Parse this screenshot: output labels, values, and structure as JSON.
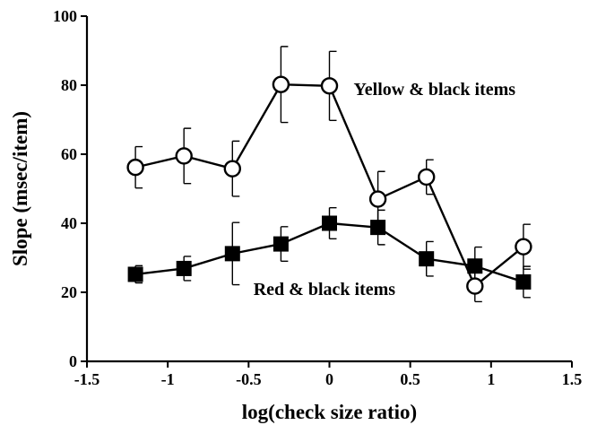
{
  "chart_data": {
    "type": "line",
    "title": "",
    "xlabel": "log(check size ratio)",
    "ylabel": "Slope (msec/item)",
    "xlim": [
      -1.5,
      1.5
    ],
    "ylim": [
      0,
      100
    ],
    "x_ticks": [
      -1.5,
      -1,
      -0.5,
      0,
      0.5,
      1,
      1.5
    ],
    "x_tick_labels": [
      "-1.5",
      "-1",
      "-0.5",
      "0",
      "0.5",
      "1",
      "1.5"
    ],
    "y_ticks": [
      0,
      20,
      40,
      60,
      80,
      100
    ],
    "y_tick_labels": [
      "0",
      "20",
      "40",
      "60",
      "80",
      "100"
    ],
    "grid": false,
    "legend": "none (series labelled by in-plot text)",
    "series": [
      {
        "name": "Yellow & black items",
        "marker": "open-circle",
        "color": "#000000",
        "x": [
          -1.2,
          -0.9,
          -0.6,
          -0.3,
          0,
          0.3,
          0.6,
          0.9,
          1.2
        ],
        "y": [
          56.2,
          59.5,
          55.8,
          80.2,
          79.8,
          47,
          53.4,
          21.8,
          33.2
        ],
        "error": [
          6,
          8,
          8,
          11,
          10,
          8,
          5,
          4.5,
          6.5
        ]
      },
      {
        "name": "Red & black items",
        "marker": "filled-square",
        "color": "#000000",
        "x": [
          -1.2,
          -0.9,
          -0.6,
          -0.3,
          0,
          0.3,
          0.6,
          0.9,
          1.2
        ],
        "y": [
          25.2,
          26.9,
          31.2,
          34,
          40,
          38.8,
          29.7,
          27.6,
          23
        ],
        "error": [
          2.5,
          3.5,
          9,
          5,
          4.5,
          5,
          5,
          5.5,
          4.5
        ]
      }
    ],
    "annotations": [
      {
        "text": "Yellow & black items",
        "x": 0.15,
        "y": 79
      },
      {
        "text": "Red & black items",
        "x": -0.47,
        "y": 21
      }
    ]
  }
}
